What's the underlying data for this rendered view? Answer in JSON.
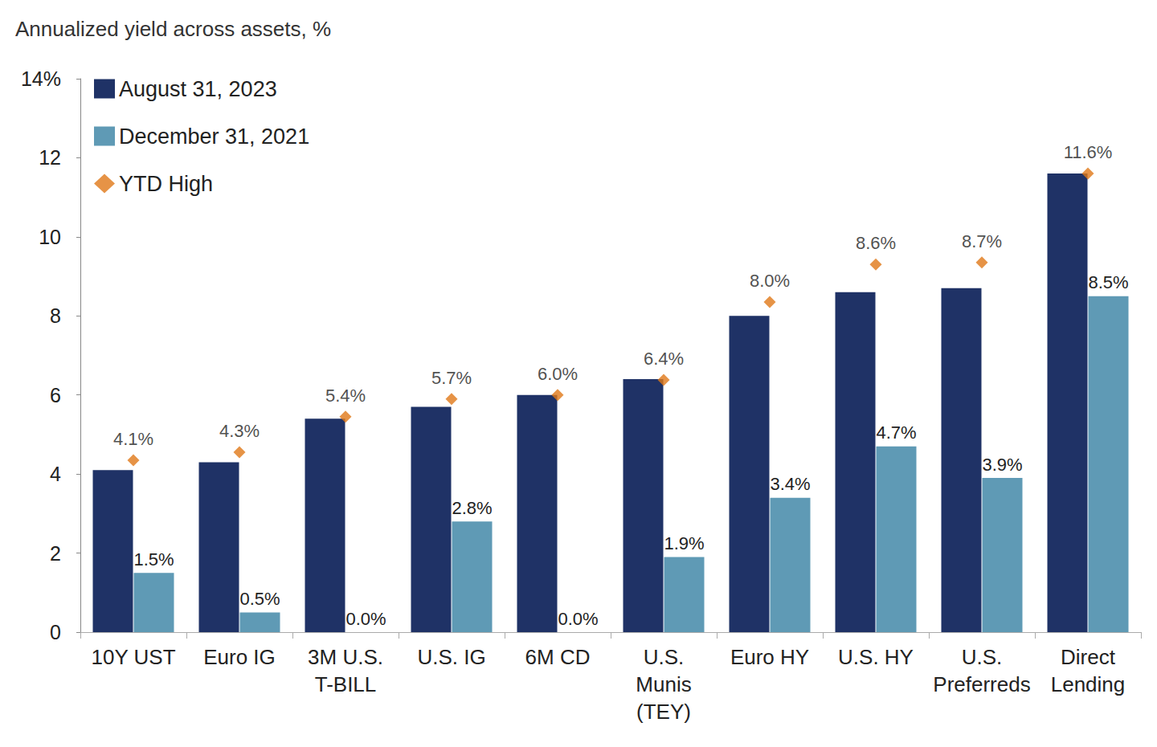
{
  "chart_data": {
    "type": "bar",
    "title": "Annualized yield across assets, %",
    "categories": [
      "10Y UST",
      "Euro IG",
      "3M U.S.\nT-BILL",
      "U.S. IG",
      "6M CD",
      "U.S.\nMunis\n(TEY)",
      "Euro HY",
      "U.S. HY",
      "U.S.\nPreferreds",
      "Direct\nLending"
    ],
    "series": [
      {
        "name": "August 31, 2023",
        "type": "bar",
        "color": "#1f3266",
        "values": [
          4.1,
          4.3,
          5.4,
          5.7,
          6.0,
          6.4,
          8.0,
          8.6,
          8.7,
          11.6
        ],
        "value_labels": [
          "4.1%",
          "4.3%",
          "5.4%",
          "5.7%",
          "6.0%",
          "6.4%",
          "8.0%",
          "8.6%",
          "8.7%",
          "11.6%"
        ]
      },
      {
        "name": "December 31, 2021",
        "type": "bar",
        "color": "#5f9ab5",
        "values": [
          1.5,
          0.5,
          0.0,
          2.8,
          0.0,
          1.9,
          3.4,
          4.7,
          3.9,
          8.5
        ],
        "value_labels": [
          "1.5%",
          "0.5%",
          "0.0%",
          "2.8%",
          "0.0%",
          "1.9%",
          "3.4%",
          "4.7%",
          "3.9%",
          "8.5%"
        ]
      },
      {
        "name": "YTD High",
        "type": "scatter",
        "marker": "diamond",
        "color": "#e07818",
        "values": [
          4.35,
          4.55,
          5.45,
          5.9,
          6.0,
          6.38,
          8.35,
          9.3,
          9.35,
          11.6
        ]
      }
    ],
    "ylim": [
      0,
      14
    ],
    "yticks": [
      0,
      2,
      4,
      6,
      8,
      10,
      12,
      {
        "value": 14,
        "label": "14%"
      }
    ],
    "grid": false,
    "legend": "top-left",
    "data_labels": true
  }
}
